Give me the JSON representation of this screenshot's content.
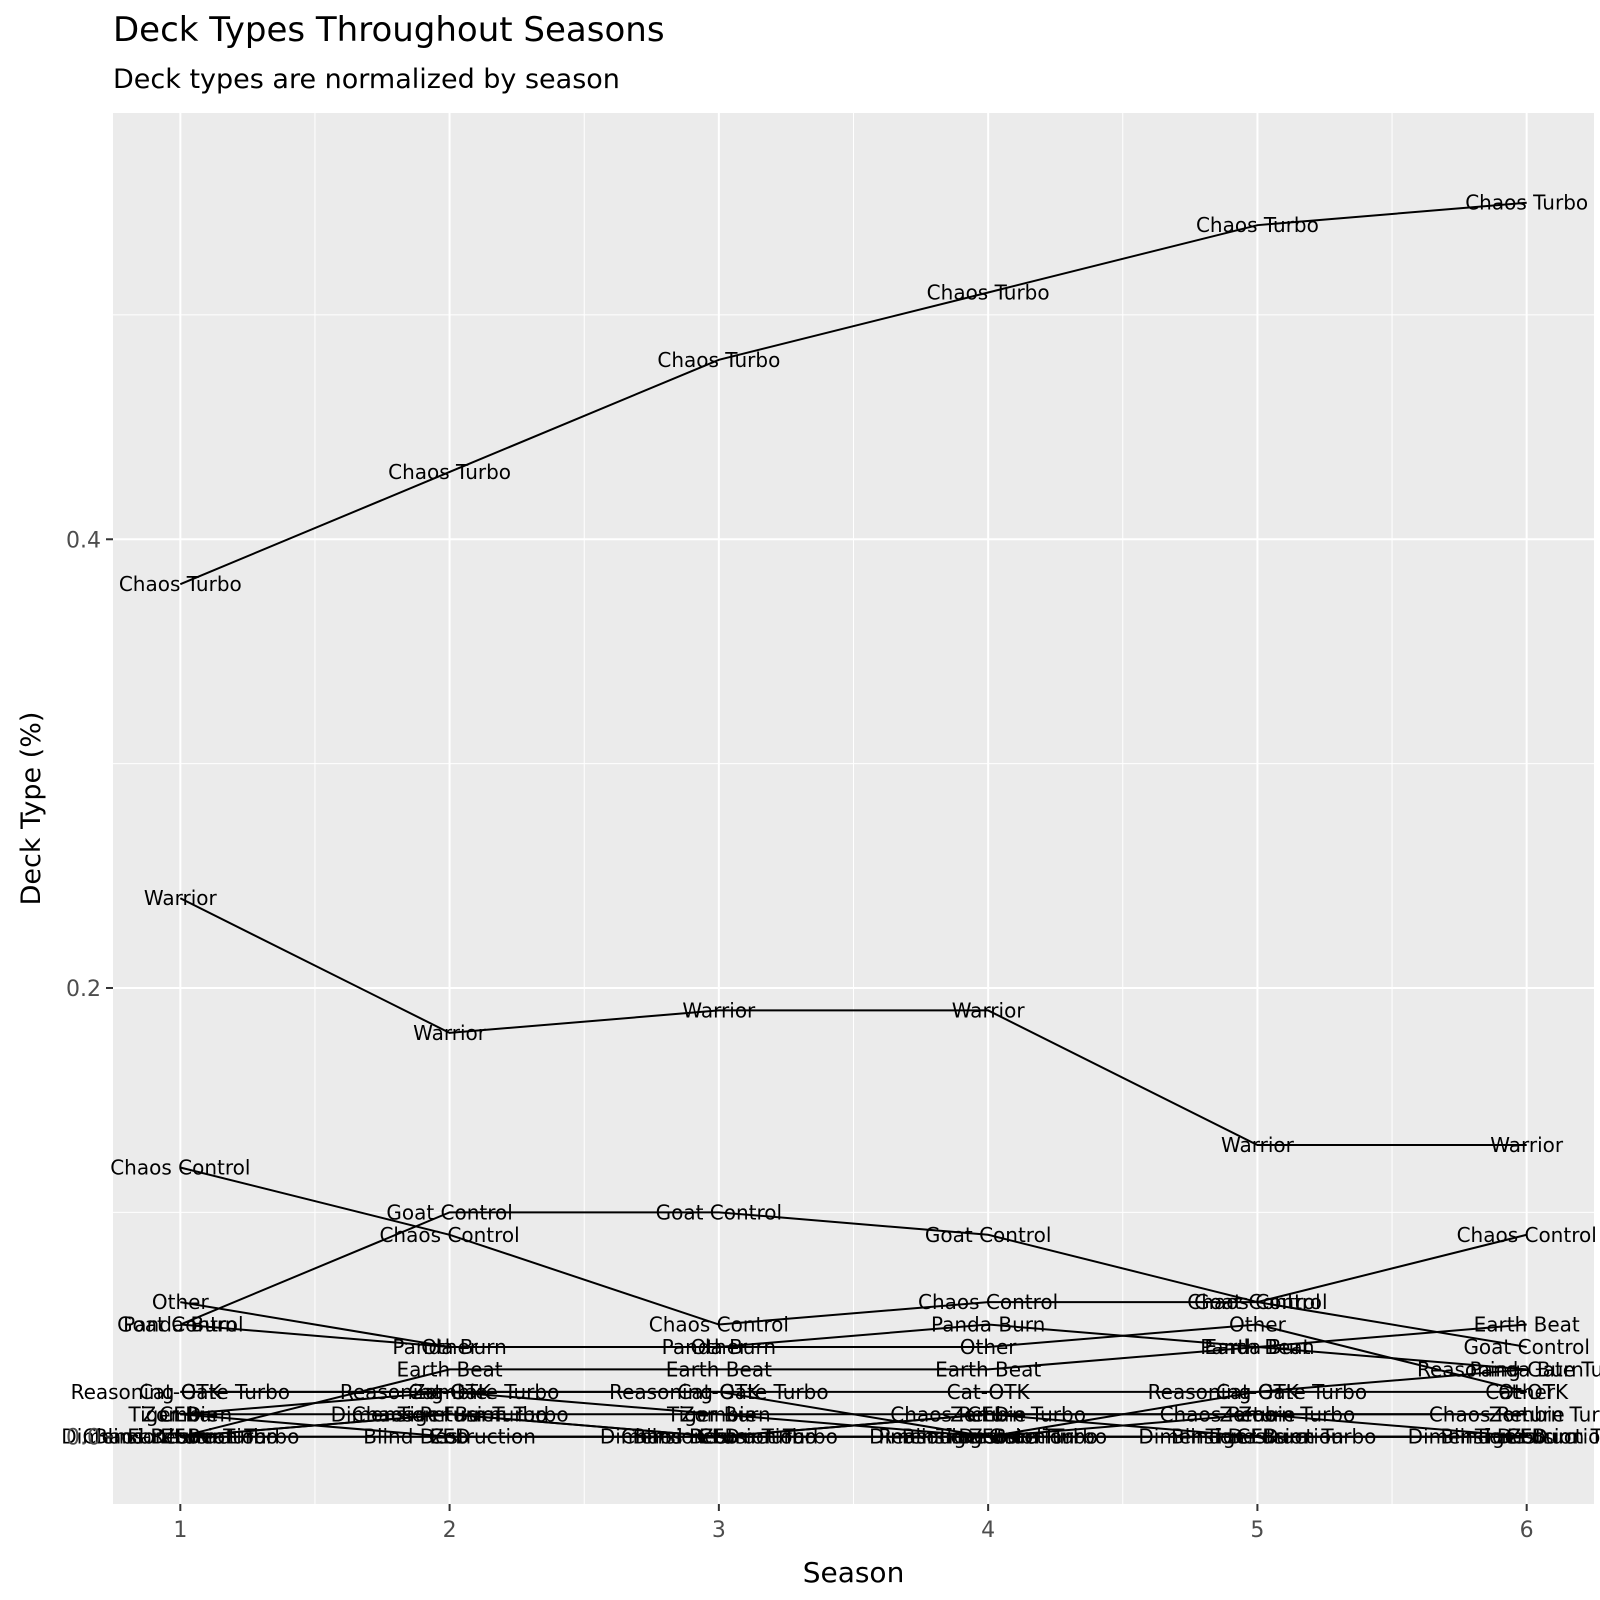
{
  "chart_data": {
    "type": "line",
    "title": "Deck Types Throughout Seasons",
    "subtitle": "Deck types are normalized by season",
    "xlabel": "Season",
    "ylabel": "Deck Type (%)",
    "x": [
      1,
      2,
      3,
      4,
      5,
      6
    ],
    "x_ticks": [
      "1",
      "2",
      "3",
      "4",
      "5",
      "6"
    ],
    "y_ticks": [
      "0.0",
      "0.2",
      "0.4"
    ],
    "xlim": [
      0.75,
      6.25
    ],
    "ylim": [
      -0.03,
      0.59
    ],
    "grid": true,
    "legend": "none",
    "panel_color": "#ebebeb",
    "line_color": "#000000",
    "series": [
      {
        "name": "Chaos Turbo",
        "values": [
          0.38,
          0.43,
          0.48,
          0.51,
          0.54,
          0.55
        ]
      },
      {
        "name": "Warrior",
        "values": [
          0.24,
          0.18,
          0.19,
          0.19,
          0.13,
          0.13
        ]
      },
      {
        "name": "Chaos Control",
        "values": [
          0.12,
          0.09,
          0.05,
          0.06,
          0.06,
          0.09
        ]
      },
      {
        "name": "Goat Control",
        "values": [
          0.05,
          0.1,
          0.1,
          0.09,
          0.06,
          0.04
        ]
      },
      {
        "name": "Other",
        "values": [
          0.06,
          0.04,
          0.04,
          0.04,
          0.05,
          0.02
        ]
      },
      {
        "name": "Panda Burn",
        "values": [
          0.05,
          0.04,
          0.04,
          0.05,
          0.04,
          0.03
        ]
      },
      {
        "name": "Earth Beat",
        "values": [
          0.0,
          0.03,
          0.03,
          0.03,
          0.04,
          0.05
        ]
      },
      {
        "name": "Cat-OTK",
        "values": [
          0.02,
          0.02,
          0.02,
          0.02,
          0.02,
          0.02
        ]
      },
      {
        "name": "Reasoning Gate Turbo",
        "values": [
          0.02,
          0.02,
          0.02,
          0.0,
          0.02,
          0.03
        ]
      },
      {
        "name": "Zombie",
        "values": [
          0.01,
          0.02,
          0.01,
          0.01,
          0.01,
          0.01
        ]
      },
      {
        "name": "Dimension Fusion Turbo",
        "values": [
          0.0,
          0.01,
          0.0,
          0.0,
          0.0,
          0.0
        ]
      },
      {
        "name": "Tiger Burn",
        "values": [
          0.01,
          0.01,
          0.01,
          0.0,
          0.0,
          0.0
        ]
      },
      {
        "name": "Chaos Return Turbo",
        "values": [
          0.0,
          0.01,
          0.0,
          0.01,
          0.01,
          0.01
        ]
      },
      {
        "name": "CED",
        "values": [
          0.01,
          0.0,
          0.0,
          0.01,
          0.0,
          0.0
        ]
      },
      {
        "name": "Zoo",
        "values": [
          0.0,
          0.0,
          0.0,
          0.0,
          0.01,
          0.0
        ]
      },
      {
        "name": "Blind Destruction",
        "values": [
          0.0,
          0.0,
          0.0,
          0.0,
          0.0,
          0.0
        ]
      }
    ],
    "annotations": [
      {
        "label": "Chaos Turbo",
        "x": 1,
        "y": 0.38
      },
      {
        "label": "Chaos Turbo",
        "x": 2,
        "y": 0.43
      },
      {
        "label": "Chaos Turbo",
        "x": 3,
        "y": 0.48
      },
      {
        "label": "Chaos Turbo",
        "x": 4,
        "y": 0.51
      },
      {
        "label": "Chaos Turbo",
        "x": 5,
        "y": 0.54
      },
      {
        "label": "Chaos Turbo",
        "x": 6,
        "y": 0.55
      },
      {
        "label": "Warrior",
        "x": 1,
        "y": 0.24
      },
      {
        "label": "Warrior",
        "x": 2,
        "y": 0.18
      },
      {
        "label": "Warrior",
        "x": 3,
        "y": 0.19
      },
      {
        "label": "Warrior",
        "x": 4,
        "y": 0.19
      },
      {
        "label": "Warrior",
        "x": 5,
        "y": 0.13
      },
      {
        "label": "Warrior",
        "x": 6,
        "y": 0.13
      },
      {
        "label": "Chaos Control",
        "x": 1,
        "y": 0.12
      },
      {
        "label": "Chaos Control",
        "x": 2,
        "y": 0.09
      },
      {
        "label": "Chaos Control",
        "x": 3,
        "y": 0.05
      },
      {
        "label": "Chaos Control",
        "x": 4,
        "y": 0.06
      },
      {
        "label": "Chaos Control",
        "x": 5,
        "y": 0.06
      },
      {
        "label": "Chaos Control",
        "x": 6,
        "y": 0.09
      },
      {
        "label": "Goat Control",
        "x": 1,
        "y": 0.05
      },
      {
        "label": "Goat Control",
        "x": 2,
        "y": 0.1
      },
      {
        "label": "Goat Control",
        "x": 3,
        "y": 0.1
      },
      {
        "label": "Goat Control",
        "x": 4,
        "y": 0.09
      },
      {
        "label": "Goat Control",
        "x": 5,
        "y": 0.06
      },
      {
        "label": "Goat Control",
        "x": 6,
        "y": 0.04
      },
      {
        "label": "Other",
        "x": 1,
        "y": 0.06
      },
      {
        "label": "Other",
        "x": 2,
        "y": 0.04
      },
      {
        "label": "Other",
        "x": 3,
        "y": 0.04
      },
      {
        "label": "Other",
        "x": 4,
        "y": 0.04
      },
      {
        "label": "Other",
        "x": 5,
        "y": 0.05
      },
      {
        "label": "Other",
        "x": 6,
        "y": 0.02
      },
      {
        "label": "Panda Burn",
        "x": 1,
        "y": 0.05
      },
      {
        "label": "Panda Burn",
        "x": 2,
        "y": 0.04
      },
      {
        "label": "Panda Burn",
        "x": 3,
        "y": 0.04
      },
      {
        "label": "Panda Burn",
        "x": 4,
        "y": 0.05
      },
      {
        "label": "Panda Burn",
        "x": 5,
        "y": 0.04
      },
      {
        "label": "Panda Burn",
        "x": 6,
        "y": 0.03
      },
      {
        "label": "Earth Beat",
        "x": 1,
        "y": 0.0
      },
      {
        "label": "Earth Beat",
        "x": 2,
        "y": 0.03
      },
      {
        "label": "Earth Beat",
        "x": 3,
        "y": 0.03
      },
      {
        "label": "Earth Beat",
        "x": 4,
        "y": 0.03
      },
      {
        "label": "Earth Beat",
        "x": 5,
        "y": 0.04
      },
      {
        "label": "Earth Beat",
        "x": 6,
        "y": 0.05
      },
      {
        "label": "Cat-OTK",
        "x": 1,
        "y": 0.02
      },
      {
        "label": "Cat-OTK",
        "x": 2,
        "y": 0.02
      },
      {
        "label": "Cat-OTK",
        "x": 3,
        "y": 0.02
      },
      {
        "label": "Cat-OTK",
        "x": 4,
        "y": 0.02
      },
      {
        "label": "Cat-OTK",
        "x": 5,
        "y": 0.02
      },
      {
        "label": "Cat-OTK",
        "x": 6,
        "y": 0.02
      },
      {
        "label": "Reasoning Gate Turbo",
        "x": 1,
        "y": 0.02
      },
      {
        "label": "Reasoning Gate Turbo",
        "x": 2,
        "y": 0.02
      },
      {
        "label": "Reasoning Gate Turbo",
        "x": 3,
        "y": 0.02
      },
      {
        "label": "Reasoning Gate Turbo",
        "x": 4,
        "y": 0.0
      },
      {
        "label": "Reasoning Gate Turbo",
        "x": 5,
        "y": 0.02
      },
      {
        "label": "Reasoning Gate Turbo",
        "x": 6,
        "y": 0.03
      },
      {
        "label": "Zombie",
        "x": 1,
        "y": 0.01
      },
      {
        "label": "Zombie",
        "x": 2,
        "y": 0.02
      },
      {
        "label": "Zombie",
        "x": 3,
        "y": 0.01
      },
      {
        "label": "Zombie",
        "x": 4,
        "y": 0.01
      },
      {
        "label": "Zombie",
        "x": 5,
        "y": 0.01
      },
      {
        "label": "Zombie",
        "x": 6,
        "y": 0.01
      },
      {
        "label": "Dimension Fusion Turbo",
        "x": 1,
        "y": 0.0
      },
      {
        "label": "Dimension Fusion Turbo",
        "x": 2,
        "y": 0.01
      },
      {
        "label": "Dimension Fusion Turbo",
        "x": 3,
        "y": 0.0
      },
      {
        "label": "Dimension Fusion Turbo",
        "x": 4,
        "y": 0.0
      },
      {
        "label": "Dimension Fusion Turbo",
        "x": 5,
        "y": 0.0
      },
      {
        "label": "Dimension Fusion Turbo",
        "x": 6,
        "y": 0.0
      },
      {
        "label": "Tiger Burn",
        "x": 1,
        "y": 0.01
      },
      {
        "label": "Tiger Burn",
        "x": 2,
        "y": 0.01
      },
      {
        "label": "Tiger Burn",
        "x": 3,
        "y": 0.01
      },
      {
        "label": "Tiger Burn",
        "x": 4,
        "y": 0.0
      },
      {
        "label": "Tiger Burn",
        "x": 5,
        "y": 0.0
      },
      {
        "label": "Tiger Burn",
        "x": 6,
        "y": 0.0
      },
      {
        "label": "Chaos Return Turbo",
        "x": 1,
        "y": 0.0
      },
      {
        "label": "Chaos Return Turbo",
        "x": 2,
        "y": 0.01
      },
      {
        "label": "Chaos Return Turbo",
        "x": 3,
        "y": 0.0
      },
      {
        "label": "Chaos Return Turbo",
        "x": 4,
        "y": 0.01
      },
      {
        "label": "Chaos Return Turbo",
        "x": 5,
        "y": 0.01
      },
      {
        "label": "Chaos Return Turbo",
        "x": 6,
        "y": 0.01
      },
      {
        "label": "CED",
        "x": 1,
        "y": 0.01
      },
      {
        "label": "CED",
        "x": 2,
        "y": 0.0
      },
      {
        "label": "CED",
        "x": 3,
        "y": 0.0
      },
      {
        "label": "CED",
        "x": 4,
        "y": 0.01
      },
      {
        "label": "CED",
        "x": 5,
        "y": 0.0
      },
      {
        "label": "CED",
        "x": 6,
        "y": 0.0
      },
      {
        "label": "Zoo",
        "x": 1,
        "y": 0.0
      },
      {
        "label": "Zoo",
        "x": 2,
        "y": 0.0
      },
      {
        "label": "Zoo",
        "x": 3,
        "y": 0.0
      },
      {
        "label": "Zoo",
        "x": 4,
        "y": 0.0
      },
      {
        "label": "Zoo",
        "x": 5,
        "y": 0.01
      },
      {
        "label": "Zoo",
        "x": 6,
        "y": 0.0
      },
      {
        "label": "Blind Destruction",
        "x": 1,
        "y": 0.0
      },
      {
        "label": "Blind Destruction",
        "x": 2,
        "y": 0.0
      },
      {
        "label": "Blind Destruction",
        "x": 3,
        "y": 0.0
      },
      {
        "label": "Blind Destruction",
        "x": 4,
        "y": 0.0
      },
      {
        "label": "Blind Destruction",
        "x": 5,
        "y": 0.0
      },
      {
        "label": "Blind Destruction",
        "x": 6,
        "y": 0.0
      }
    ]
  }
}
